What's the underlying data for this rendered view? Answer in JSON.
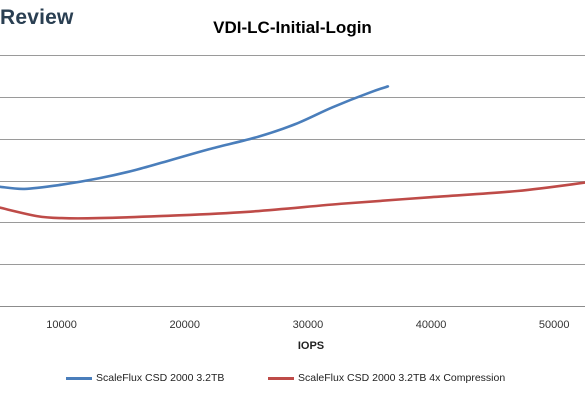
{
  "header": {
    "brand": "Review"
  },
  "chart_data": {
    "type": "line",
    "title": "VDI-LC-Initial-Login",
    "xlabel": "IOPS",
    "ylabel": "",
    "xlim": [
      5000,
      52500
    ],
    "ylim": [
      0,
      6
    ],
    "x_ticks": [
      10000,
      20000,
      30000,
      40000,
      50000
    ],
    "grid": true,
    "legend_position": "bottom",
    "series": [
      {
        "name": "ScaleFlux CSD 2000 3.2TB",
        "color": "#4a7ebb",
        "x": [
          5000,
          7000,
          10000,
          13000,
          16000,
          19000,
          22000,
          26000,
          29000,
          32000,
          35000,
          36500
        ],
        "y": [
          2.85,
          2.8,
          2.9,
          3.05,
          3.25,
          3.5,
          3.75,
          4.05,
          4.35,
          4.75,
          5.1,
          5.25
        ]
      },
      {
        "name": "ScaleFlux CSD 2000 3.2TB 4x Compression",
        "color": "#be4b48",
        "x": [
          5000,
          8000,
          10000,
          13000,
          18000,
          25000,
          33000,
          40000,
          47000,
          52500
        ],
        "y": [
          2.35,
          2.15,
          2.1,
          2.1,
          2.15,
          2.25,
          2.45,
          2.6,
          2.75,
          2.95
        ]
      }
    ]
  }
}
